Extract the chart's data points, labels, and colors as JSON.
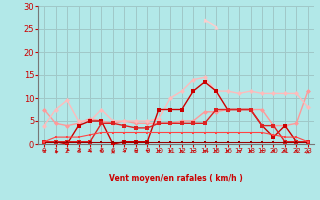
{
  "xlabel": "Vent moyen/en rafales ( km/h )",
  "background_color": "#b2e8e8",
  "grid_color": "#a0c8c8",
  "xlim": [
    -0.5,
    23.5
  ],
  "ylim": [
    0,
    30
  ],
  "yticks": [
    0,
    5,
    10,
    15,
    20,
    25,
    30
  ],
  "xticks": [
    0,
    1,
    2,
    3,
    4,
    5,
    6,
    7,
    8,
    9,
    10,
    11,
    12,
    13,
    14,
    15,
    16,
    17,
    18,
    19,
    20,
    21,
    22,
    23
  ],
  "series": [
    {
      "x": [
        0,
        1,
        2,
        3,
        4,
        5,
        6,
        7,
        8,
        9,
        10,
        11,
        12,
        13,
        14,
        15,
        16,
        17,
        18,
        19,
        20,
        21,
        22,
        23
      ],
      "y": [
        7.5,
        4.5,
        4.0,
        4.5,
        5.5,
        5.0,
        4.5,
        5.0,
        4.5,
        4.5,
        4.5,
        4.5,
        5.0,
        5.0,
        7.0,
        7.0,
        7.5,
        7.5,
        7.5,
        7.5,
        4.0,
        4.0,
        4.5,
        11.5
      ],
      "color": "#ff9999",
      "lw": 1.0,
      "marker": "D",
      "ms": 2.5
    },
    {
      "x": [
        0,
        1,
        2,
        3,
        4,
        5,
        6,
        7,
        8,
        9,
        10,
        11,
        12,
        13,
        14,
        15,
        16,
        17,
        18,
        19,
        20,
        21,
        22,
        23
      ],
      "y": [
        4.0,
        7.5,
        9.5,
        5.0,
        5.0,
        7.5,
        5.0,
        5.0,
        5.0,
        5.0,
        5.5,
        10.0,
        11.5,
        14.0,
        14.5,
        11.5,
        11.5,
        11.0,
        11.5,
        11.0,
        11.0,
        11.0,
        11.0,
        8.0
      ],
      "color": "#ffbbbb",
      "lw": 1.0,
      "marker": "D",
      "ms": 2.5
    },
    {
      "x": [
        0,
        1,
        2,
        3,
        4,
        5,
        6,
        7,
        8,
        9,
        10,
        11,
        12,
        13,
        14,
        15,
        16,
        17,
        18,
        19,
        20,
        21,
        22,
        23
      ],
      "y": [
        0.5,
        0.5,
        0.0,
        4.0,
        5.0,
        5.0,
        0.0,
        0.5,
        0.5,
        0.5,
        7.5,
        7.5,
        7.5,
        11.5,
        13.5,
        11.5,
        7.5,
        7.5,
        7.5,
        4.0,
        1.5,
        4.0,
        0.5,
        0.5
      ],
      "color": "#cc0000",
      "lw": 1.0,
      "marker": "s",
      "ms": 2.5
    },
    {
      "x": [
        0,
        1,
        2,
        3,
        4,
        5,
        6,
        7,
        8,
        9,
        10,
        11,
        12,
        13,
        14,
        15,
        16,
        17,
        18,
        19,
        20,
        21,
        22,
        23
      ],
      "y": [
        0.5,
        0.5,
        0.5,
        0.5,
        0.5,
        4.5,
        4.5,
        4.0,
        3.5,
        3.5,
        4.5,
        4.5,
        4.5,
        4.5,
        4.5,
        7.5,
        7.5,
        7.5,
        7.5,
        4.0,
        4.0,
        0.5,
        0.5,
        0.5
      ],
      "color": "#dd2222",
      "lw": 1.0,
      "marker": "s",
      "ms": 2.5
    },
    {
      "x": [
        0,
        1,
        2,
        3,
        4,
        5,
        6,
        7,
        8,
        9,
        10,
        11,
        12,
        13,
        14,
        15,
        16,
        17,
        18,
        19,
        20,
        21,
        22,
        23
      ],
      "y": [
        0.5,
        0.5,
        0.5,
        0.5,
        0.5,
        0.5,
        0.5,
        0.5,
        0.5,
        0.5,
        0.5,
        0.5,
        0.5,
        0.5,
        0.5,
        0.5,
        0.5,
        0.5,
        0.5,
        0.5,
        0.5,
        0.5,
        0.5,
        0.5
      ],
      "color": "#990000",
      "lw": 0.8,
      "marker": "s",
      "ms": 2.0
    },
    {
      "x": [
        0,
        1,
        2,
        3,
        4,
        5,
        6,
        7,
        8,
        9,
        10,
        11,
        12,
        13,
        14,
        15,
        16,
        17,
        18,
        19,
        20,
        21,
        22,
        23
      ],
      "y": [
        0.5,
        1.5,
        1.5,
        1.5,
        2.0,
        2.5,
        2.5,
        2.5,
        2.5,
        2.5,
        2.5,
        2.5,
        2.5,
        2.5,
        2.5,
        2.5,
        2.5,
        2.5,
        2.5,
        2.5,
        2.0,
        1.5,
        1.5,
        0.5
      ],
      "color": "#ff4444",
      "lw": 0.8,
      "marker": "s",
      "ms": 2.0
    },
    {
      "x": [
        14,
        15
      ],
      "y": [
        27.0,
        25.5
      ],
      "color": "#ffcccc",
      "lw": 1.0,
      "marker": "^",
      "ms": 3
    }
  ],
  "wind_arrows": [
    [
      0,
      225
    ],
    [
      1,
      202
    ],
    [
      2,
      337
    ],
    [
      3,
      315
    ],
    [
      4,
      45
    ],
    [
      5,
      270
    ],
    [
      6,
      180
    ],
    [
      7,
      67
    ],
    [
      8,
      225
    ],
    [
      9,
      247
    ],
    [
      10,
      225
    ],
    [
      11,
      247
    ],
    [
      12,
      247
    ],
    [
      13,
      225
    ],
    [
      14,
      225
    ],
    [
      15,
      247
    ],
    [
      16,
      247
    ],
    [
      17,
      225
    ],
    [
      18,
      247
    ],
    [
      19,
      225
    ],
    [
      20,
      247
    ],
    [
      21,
      270
    ],
    [
      22,
      247
    ],
    [
      23,
      180
    ]
  ],
  "label_color": "#cc0000",
  "tick_color": "#cc0000",
  "xlabel_color": "#cc0000"
}
